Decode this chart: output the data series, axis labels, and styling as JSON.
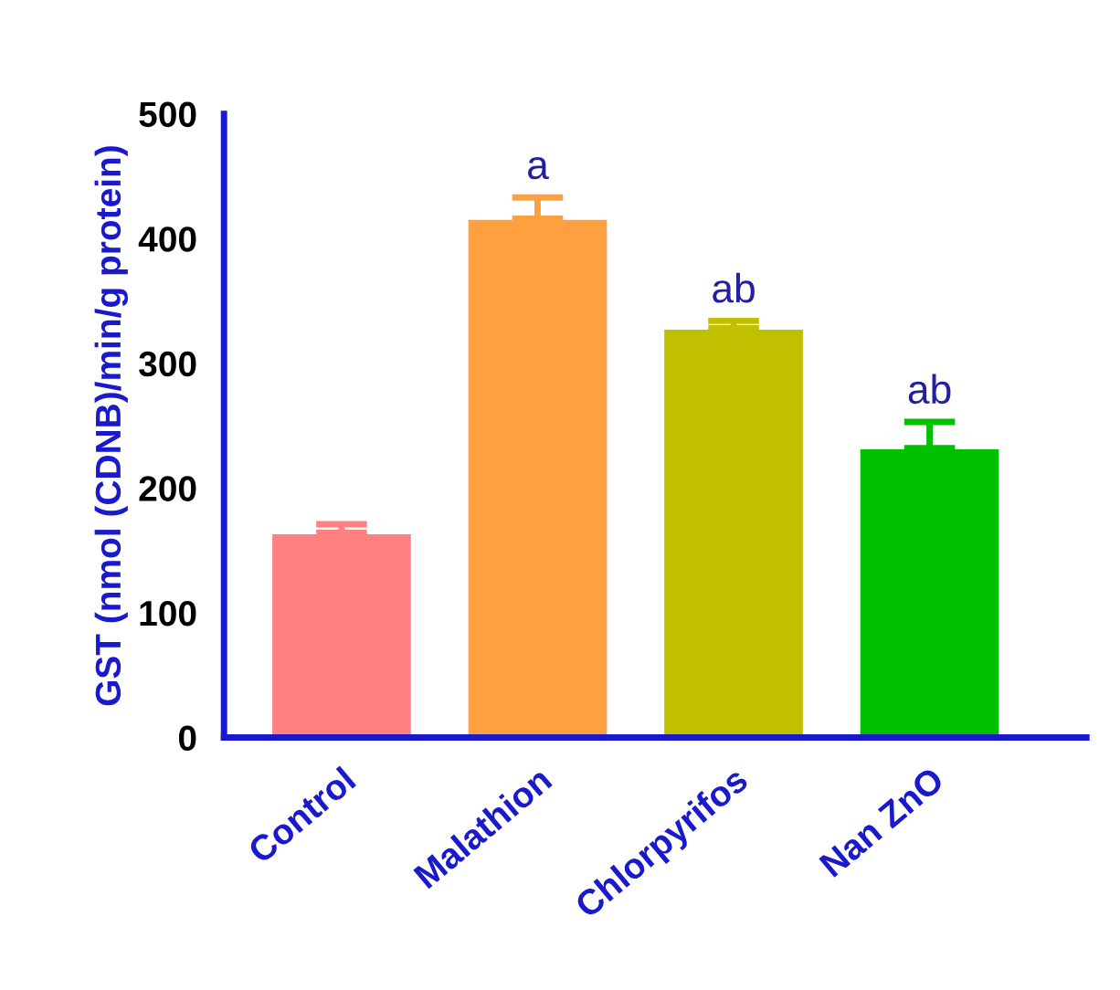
{
  "chart_data": {
    "type": "bar",
    "ylabel": "GST (nmol (CDNB)/min/g protein)",
    "categories": [
      "Control",
      "Malathion",
      "Chlorpyrifos",
      "Nan ZnO"
    ],
    "values": [
      164,
      416,
      328,
      232
    ],
    "errors": [
      [
        164,
        171
      ],
      [
        416,
        433
      ],
      [
        328,
        334
      ],
      [
        232,
        253
      ]
    ],
    "colors": [
      "#ff8080",
      "#ffa040",
      "#c0c000",
      "#00c000"
    ],
    "ylim": [
      0,
      500
    ],
    "yticks": [
      0,
      100,
      200,
      300,
      400,
      500
    ],
    "grid": false,
    "annotations": [
      {
        "text": "a",
        "x": "Malathion",
        "y": 433
      },
      {
        "text": "ab",
        "x": "Chlorpyrifos",
        "y": 334
      },
      {
        "text": "ab",
        "x": "Nan ZnO",
        "y": 253
      }
    ]
  }
}
